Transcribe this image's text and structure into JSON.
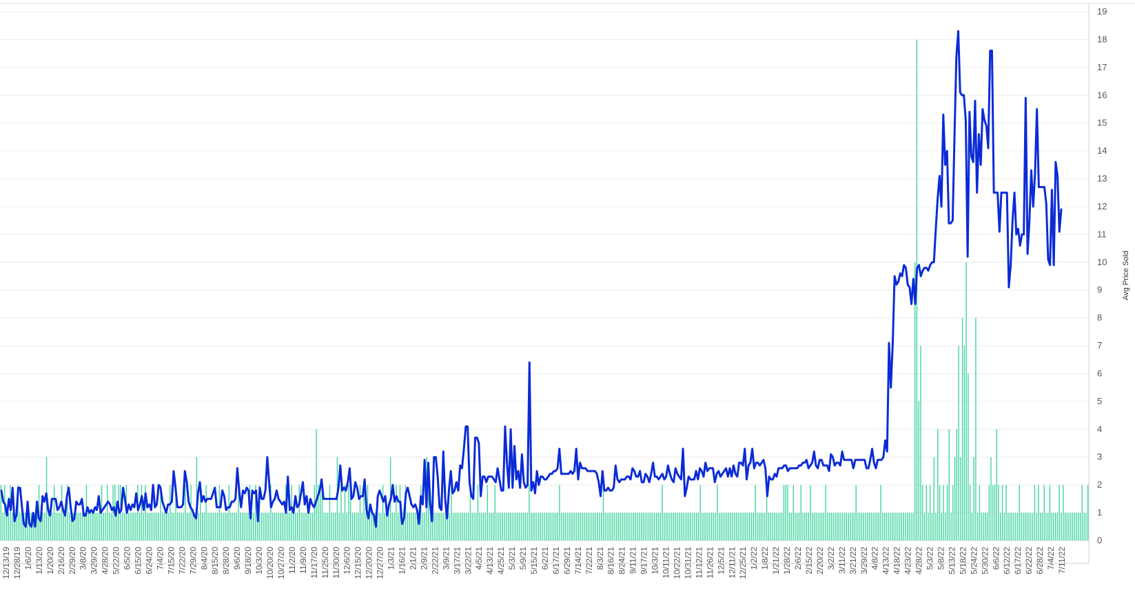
{
  "chart_data": {
    "type": "bar+line",
    "ylabel": "Avg Price Sold",
    "ylim": [
      0,
      19
    ],
    "yticks": [
      0,
      1,
      2,
      3,
      4,
      5,
      6,
      7,
      8,
      9,
      10,
      11,
      12,
      13,
      14,
      15,
      16,
      17,
      18,
      19
    ],
    "grid": true,
    "x_range": [
      "12/13/19",
      "7/16/22"
    ],
    "xtick_labels": [
      "12/13/19",
      "12/28/19",
      "1/6/20",
      "1/13/20",
      "1/20/20",
      "2/16/20",
      "2/29/20",
      "3/8/20",
      "3/29/20",
      "4/28/20",
      "5/22/20",
      "6/5/20",
      "6/15/20",
      "6/24/20",
      "7/4/20",
      "7/15/20",
      "7/22/20",
      "7/29/20",
      "8/4/20",
      "8/15/20",
      "8/28/20",
      "9/6/20",
      "9/18/20",
      "10/3/20",
      "10/20/20",
      "10/27/20",
      "11/2/20",
      "11/9/20",
      "11/17/20",
      "11/25/20",
      "11/30/20",
      "12/6/20",
      "12/15/20",
      "12/20/20",
      "12/27/20",
      "1/3/21",
      "1/16/21",
      "2/1/21",
      "2/9/21",
      "2/22/21",
      "3/9/21",
      "3/17/21",
      "3/22/21",
      "4/5/21",
      "4/13/21",
      "4/25/21",
      "5/3/21",
      "5/9/21",
      "5/15/21",
      "6/2/21",
      "6/17/21",
      "6/29/21",
      "7/14/21",
      "7/22/21",
      "8/3/21",
      "8/16/21",
      "8/24/21",
      "9/11/21",
      "9/17/21",
      "10/3/21",
      "10/11/21",
      "10/22/21",
      "10/31/21",
      "11/12/21",
      "11/26/21",
      "12/5/21",
      "12/11/21",
      "12/25/21",
      "1/2/22",
      "1/8/22",
      "1/21/22",
      "1/28/22",
      "2/6/22",
      "2/15/22",
      "2/20/22",
      "3/2/22",
      "3/11/22",
      "3/21/22",
      "3/29/22",
      "4/8/22",
      "4/13/22",
      "4/18/22",
      "4/23/22",
      "4/28/22",
      "5/3/22",
      "5/8/22",
      "5/13/22",
      "5/18/22",
      "5/24/22",
      "5/30/22",
      "6/6/22",
      "6/12/22",
      "6/17/22",
      "6/22/22",
      "6/28/22",
      "7/4/22",
      "7/11/22"
    ],
    "series": [
      {
        "type": "line",
        "color": "#0b2bd6",
        "axis": "Avg Price Sold",
        "values": [
          1.8,
          1.4,
          1.3,
          0.9,
          1.5,
          1.1,
          1.9,
          0.7,
          0.9,
          1.9,
          1.9,
          1.2,
          0.6,
          0.5,
          1.4,
          0.6,
          0.5,
          1.0,
          0.5,
          1.4,
          0.8,
          0.7,
          1.6,
          1.4,
          1.7,
          1.1,
          0.9,
          1.5,
          1.5,
          1.5,
          1.1,
          1.2,
          1.4,
          1.1,
          0.9,
          1.6,
          1.9,
          1.2,
          0.7,
          0.8,
          1.4,
          1.3,
          1.3,
          1.5,
          0.9,
          0.9,
          1.2,
          1.0,
          1.1,
          1.0,
          1.2,
          1.1,
          1.6,
          1.0,
          1.1,
          1.2,
          1.3,
          1.4,
          1.3,
          1.1,
          1.2,
          0.9,
          1.4,
          1.0,
          1.1,
          1.9,
          1.5,
          1.0,
          1.3,
          1.1,
          1.3,
          1.2,
          1.7,
          1.1,
          1.3,
          1.6,
          1.1,
          1.7,
          1.2,
          1.3,
          1.1,
          2.0,
          1.2,
          1.3,
          2.0,
          1.9,
          1.4,
          1.2,
          1.0,
          1.3,
          1.3,
          1.4,
          2.5,
          1.9,
          1.2,
          1.2,
          1.2,
          1.3,
          2.5,
          2.1,
          1.4,
          1.2,
          1.1,
          0.9,
          0.8,
          1.7,
          2.1,
          1.4,
          1.6,
          1.4,
          1.5,
          1.5,
          1.5,
          1.7,
          1.9,
          1.2,
          1.2,
          1.2,
          1.8,
          1.6,
          1.1,
          1.2,
          1.2,
          1.4,
          1.4,
          1.5,
          2.6,
          1.8,
          1.2,
          1.8,
          1.7,
          1.9,
          1.8,
          0.8,
          1.8,
          1.7,
          1.8,
          0.7,
          1.9,
          1.5,
          1.5,
          1.8,
          3.0,
          2.1,
          1.2,
          1.4,
          1.5,
          1.8,
          1.5,
          1.4,
          1.3,
          1.4,
          1.0,
          2.3,
          1.1,
          1.2,
          1.0,
          1.6,
          1.2,
          1.3,
          1.7,
          2.1,
          1.3,
          1.6,
          1.0,
          1.5,
          1.3,
          1.2,
          1.4,
          1.6,
          1.8,
          2.2,
          1.5,
          1.5,
          1.5,
          1.5,
          1.5,
          1.5,
          1.5,
          1.5,
          1.9,
          2.7,
          1.8,
          1.9,
          1.8,
          2.1,
          2.6,
          1.5,
          1.6,
          2.1,
          1.9,
          1.5,
          1.6,
          1.6,
          2.2,
          1.1,
          0.8,
          1.3,
          1.0,
          0.9,
          0.5,
          1.6,
          1.8,
          1.6,
          1.4,
          1.6,
          0.9,
          1.3,
          1.5,
          2.0,
          1.4,
          1.6,
          1.4,
          1.4,
          0.6,
          0.8,
          1.7,
          1.9,
          1.6,
          1.3,
          1.2,
          1.3,
          1.1,
          0.6,
          1.6,
          1.3,
          2.9,
          1.2,
          2.8,
          1.3,
          0.7,
          3.0,
          3.0,
          2.3,
          1.2,
          1.1,
          3.2,
          1.5,
          0.8,
          1.8,
          2.5,
          1.7,
          1.8,
          2.1,
          1.8,
          2.7,
          2.6,
          3.3,
          4.1,
          4.1,
          2.1,
          1.6,
          1.5,
          3.7,
          3.7,
          3.5,
          1.6,
          2.3,
          2.3,
          2.1,
          2.3,
          2.3,
          2.3,
          2.2,
          2.1,
          2.6,
          2.2,
          1.8,
          1.8,
          4.1,
          2.8,
          1.9,
          4.0,
          1.9,
          3.4,
          2.2,
          2.5,
          1.9,
          3.1,
          2.1,
          1.9,
          2.0,
          6.4,
          1.8,
          2.1,
          1.7,
          2.5,
          2.0,
          2.3,
          2.3,
          2.2,
          2.2,
          2.3,
          2.4,
          2.4,
          2.5,
          2.5,
          2.6,
          3.3,
          2.4,
          2.4,
          2.4,
          2.4,
          2.4,
          2.5,
          2.4,
          2.5,
          3.3,
          2.2,
          2.8,
          2.6,
          2.6,
          2.6,
          2.5,
          2.5,
          2.5,
          2.5,
          2.5,
          2.4,
          2.1,
          1.6,
          2.5,
          1.8,
          1.8,
          1.9,
          1.8,
          1.8,
          1.9,
          2.7,
          2.2,
          2.1,
          2.2,
          2.2,
          2.2,
          2.3,
          2.3,
          2.2,
          2.6,
          2.5,
          2.3,
          2.3,
          2.5,
          2.1,
          2.1,
          2.4,
          2.3,
          2.1,
          2.4,
          2.8,
          2.3,
          2.3,
          2.2,
          2.3,
          2.4,
          2.2,
          2.3,
          2.7,
          2.4,
          2.2,
          2.1,
          2.6,
          2.4,
          2.3,
          2.2,
          3.3,
          1.6,
          1.9,
          2.3,
          2.2,
          2.2,
          2.2,
          2.5,
          2.2,
          2.6,
          2.5,
          2.3,
          2.8,
          2.5,
          2.6,
          2.6,
          2.6,
          2.1,
          2.4,
          2.5,
          2.3,
          2.4,
          2.5,
          2.6,
          2.3,
          2.6,
          2.3,
          2.7,
          2.4,
          2.3,
          2.8,
          2.8,
          2.7,
          3.3,
          2.2,
          2.7,
          2.8,
          3.3,
          2.6,
          2.8,
          2.8,
          2.7,
          2.8,
          2.9,
          2.6,
          1.6,
          2.3,
          2.2,
          2.2,
          2.4,
          2.3,
          2.6,
          2.6,
          2.6,
          2.7,
          2.7,
          2.5,
          2.6,
          2.6,
          2.6,
          2.6,
          2.6,
          2.7,
          2.7,
          2.8,
          2.8,
          2.9,
          2.6,
          2.7,
          2.8,
          3.2,
          2.7,
          2.6,
          2.9,
          2.9,
          2.7,
          2.7,
          2.7,
          2.5,
          3.1,
          3.0,
          2.7,
          2.8,
          2.8,
          2.7,
          3.2,
          2.9,
          2.9,
          2.9,
          2.9,
          2.9,
          2.6,
          2.9,
          2.9,
          2.9,
          2.9,
          2.9,
          2.9,
          2.6,
          2.6,
          2.9,
          3.3,
          2.8,
          2.6,
          2.9,
          2.9,
          2.9,
          3.0,
          3.6,
          3.2,
          7.1,
          5.5,
          7.1,
          9.5,
          9.2,
          9.3,
          9.6,
          9.5,
          9.9,
          9.8,
          9.2,
          9.1,
          8.5,
          9.4,
          8.5,
          9.8,
          9.9,
          9.5,
          9.7,
          9.8,
          9.8,
          9.7,
          9.9,
          10.0,
          10.0,
          11.2,
          12.3,
          13.1,
          12.0,
          15.3,
          13.5,
          14.0,
          11.4,
          11.4,
          11.5,
          14.6,
          17.4,
          18.3,
          16.1,
          16.0,
          16.0,
          15.1,
          10.2,
          15.4,
          13.8,
          13.6,
          15.8,
          12.5,
          14.6,
          13.5,
          15.5,
          15.1,
          14.9,
          14.1,
          17.6,
          17.6,
          12.5,
          12.5,
          12.5,
          11.1,
          12.5,
          12.5,
          12.5,
          12.5,
          9.1,
          9.9,
          11.5,
          12.5,
          11.0,
          11.2,
          10.6,
          11.0,
          11.0,
          15.9,
          10.3,
          11.5,
          13.3,
          12.0,
          13.2,
          15.5,
          12.7,
          12.7,
          12.7,
          12.7,
          12.1,
          10.1,
          9.9,
          12.6,
          9.9,
          13.6,
          13.1,
          11.1,
          11.9
        ]
      },
      {
        "type": "bar",
        "color": "#3fd49e",
        "axis": "volume",
        "values": [
          2,
          1,
          2,
          1,
          1,
          2,
          1,
          1,
          1,
          2,
          1,
          1,
          1,
          1,
          1,
          1,
          1,
          1,
          1,
          1,
          2,
          1,
          1,
          1,
          3,
          1,
          1,
          1,
          2,
          1,
          1,
          1,
          2,
          1,
          1,
          2,
          1,
          1,
          1,
          1,
          1,
          1,
          1,
          1,
          1,
          2,
          1,
          1,
          1,
          1,
          1,
          1,
          1,
          2,
          1,
          1,
          2,
          1,
          1,
          2,
          2,
          1,
          2,
          2,
          1,
          1,
          2,
          1,
          1,
          1,
          1,
          1,
          2,
          1,
          2,
          1,
          2,
          1,
          1,
          1,
          1,
          1,
          1,
          1,
          2,
          1,
          1,
          1,
          1,
          2,
          1,
          1,
          2,
          1,
          1,
          1,
          1,
          2,
          1,
          1,
          2,
          1,
          1,
          3,
          1,
          2,
          1,
          1,
          2,
          1,
          1,
          1,
          1,
          1,
          1,
          2,
          1,
          1,
          1,
          1,
          2,
          1,
          1,
          1,
          1,
          2,
          1,
          1,
          1,
          1,
          1,
          2,
          1,
          1,
          2,
          1,
          2,
          1,
          1,
          1,
          1,
          1,
          2,
          1,
          1,
          1,
          1,
          1,
          1,
          1,
          2,
          1,
          1,
          2,
          1,
          1,
          1,
          2,
          1,
          1,
          1,
          1,
          1,
          1,
          1,
          2,
          4,
          2,
          2,
          2,
          1,
          1,
          1,
          2,
          1,
          1,
          1,
          3,
          1,
          2,
          1,
          2,
          1,
          2,
          2,
          1,
          1,
          1,
          1,
          2,
          1,
          2,
          1,
          2,
          1,
          1,
          1,
          1,
          1,
          1,
          1,
          2,
          1,
          1,
          1,
          3,
          1,
          1,
          2,
          1,
          2,
          1,
          1,
          2,
          1,
          1,
          1,
          1,
          1,
          1,
          1,
          2,
          1,
          1,
          3,
          2,
          1,
          1,
          1,
          1,
          1,
          1,
          1,
          1,
          2,
          1,
          1,
          2,
          1,
          1,
          1,
          1,
          1,
          1,
          1,
          1,
          1,
          2,
          1,
          1,
          1,
          2,
          1,
          1,
          1,
          1,
          2,
          1,
          1,
          1,
          2,
          1,
          1,
          1,
          1,
          1,
          1,
          1,
          1,
          1,
          1,
          1,
          1,
          1,
          1,
          1,
          1,
          1,
          2,
          1,
          1,
          1,
          1,
          1,
          1,
          1,
          1,
          1,
          1,
          1,
          1,
          1,
          1,
          1,
          2,
          1,
          1,
          1,
          1,
          1,
          1,
          1,
          1,
          1,
          1,
          1,
          1,
          1,
          1,
          1,
          1,
          1,
          1,
          1,
          1,
          1,
          1,
          2,
          1,
          1,
          1,
          1,
          1,
          1,
          1,
          1,
          1,
          1,
          1,
          1,
          1,
          1,
          1,
          1,
          1,
          1,
          1,
          1,
          1,
          1,
          1,
          1,
          1,
          1,
          1,
          1,
          1,
          1,
          2,
          1,
          1,
          1,
          1,
          1,
          1,
          1,
          1,
          1,
          1,
          1,
          1,
          1,
          1,
          1,
          1,
          1,
          1,
          1,
          2,
          1,
          1,
          1,
          1,
          1,
          1,
          1,
          1,
          2,
          1,
          1,
          1,
          1,
          1,
          1,
          1,
          1,
          1,
          1,
          1,
          1,
          1,
          1,
          1,
          1,
          1,
          1,
          1,
          2,
          1,
          1,
          1,
          1,
          1,
          2,
          1,
          1,
          1,
          1,
          1,
          1,
          1,
          1,
          2,
          2,
          2,
          1,
          1,
          2,
          1,
          1,
          1,
          2,
          1,
          1,
          1,
          1,
          2,
          1,
          1,
          1,
          1,
          1,
          1,
          1,
          2,
          1,
          1,
          1,
          1,
          1,
          1,
          1,
          1,
          1,
          1,
          1,
          1,
          1,
          1,
          1,
          2,
          1,
          1,
          1,
          1,
          1,
          1,
          1,
          1,
          1,
          1,
          1,
          1,
          2,
          1,
          1,
          1,
          1,
          1,
          1,
          1,
          1,
          1,
          1,
          1,
          1,
          1,
          1,
          1,
          1,
          1,
          10,
          18,
          5,
          7,
          2,
          1,
          2,
          1,
          2,
          1,
          3,
          1,
          4,
          2,
          1,
          2,
          1,
          2,
          4,
          1,
          2,
          3,
          4,
          7,
          3,
          8,
          7,
          10,
          6,
          2,
          1,
          3,
          8,
          1,
          2,
          1,
          1,
          1,
          1,
          2,
          3,
          2,
          2,
          4,
          2,
          1,
          2,
          1,
          2,
          1,
          1,
          1,
          1,
          1,
          1,
          2,
          1,
          1,
          1,
          1,
          1,
          1,
          1,
          2,
          1,
          2,
          1,
          1,
          2,
          1,
          1,
          2,
          1,
          1,
          1,
          1,
          2,
          1,
          2,
          1,
          1,
          1,
          1,
          1,
          1,
          1,
          1,
          1,
          2,
          1,
          1,
          2
        ]
      }
    ]
  }
}
